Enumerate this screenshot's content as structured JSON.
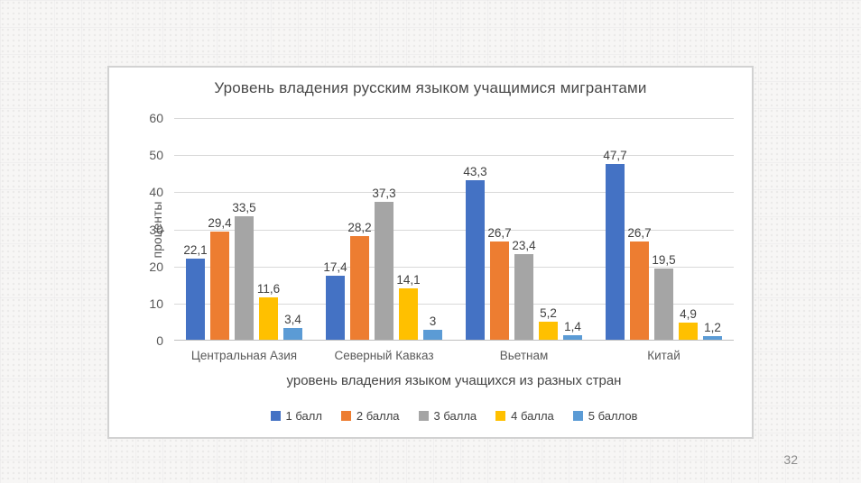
{
  "slide": {
    "page_number": "32"
  },
  "chart_data": {
    "type": "bar",
    "title": "Уровень владения русским языком учащимися мигрантами",
    "xlabel": "уровень владения языком учащихся из разных стран",
    "ylabel": "проценты",
    "ylim": [
      0,
      60
    ],
    "yticks": [
      0,
      10,
      20,
      30,
      40,
      50,
      60
    ],
    "grid": true,
    "legend_position": "bottom",
    "label_decimal_separator": ",",
    "categories": [
      "Центральная Азия",
      "Северный Кавказ",
      "Вьетнам",
      "Китай"
    ],
    "series": [
      {
        "name": "1 балл",
        "color": "#4472C4",
        "values": [
          22.1,
          17.4,
          43.3,
          47.7
        ],
        "labels": [
          "22,1",
          "17,4",
          "43,3",
          "47,7"
        ]
      },
      {
        "name": "2 балла",
        "color": "#ED7D31",
        "values": [
          29.4,
          28.2,
          26.7,
          26.7
        ],
        "labels": [
          "29,4",
          "28,2",
          "26,7",
          "26,7"
        ]
      },
      {
        "name": "3 балла",
        "color": "#A5A5A5",
        "values": [
          33.5,
          37.3,
          23.4,
          19.5
        ],
        "labels": [
          "33,5",
          "37,3",
          "23,4",
          "19,5"
        ]
      },
      {
        "name": "4 балла",
        "color": "#FFC000",
        "values": [
          11.6,
          14.1,
          5.2,
          4.9
        ],
        "labels": [
          "11,6",
          "14,1",
          "5,2",
          "4,9"
        ]
      },
      {
        "name": "5 баллов",
        "color": "#5B9BD5",
        "values": [
          3.4,
          3.0,
          1.4,
          1.2
        ],
        "labels": [
          "3,4",
          "3",
          "1,4",
          "1,2"
        ]
      }
    ]
  }
}
